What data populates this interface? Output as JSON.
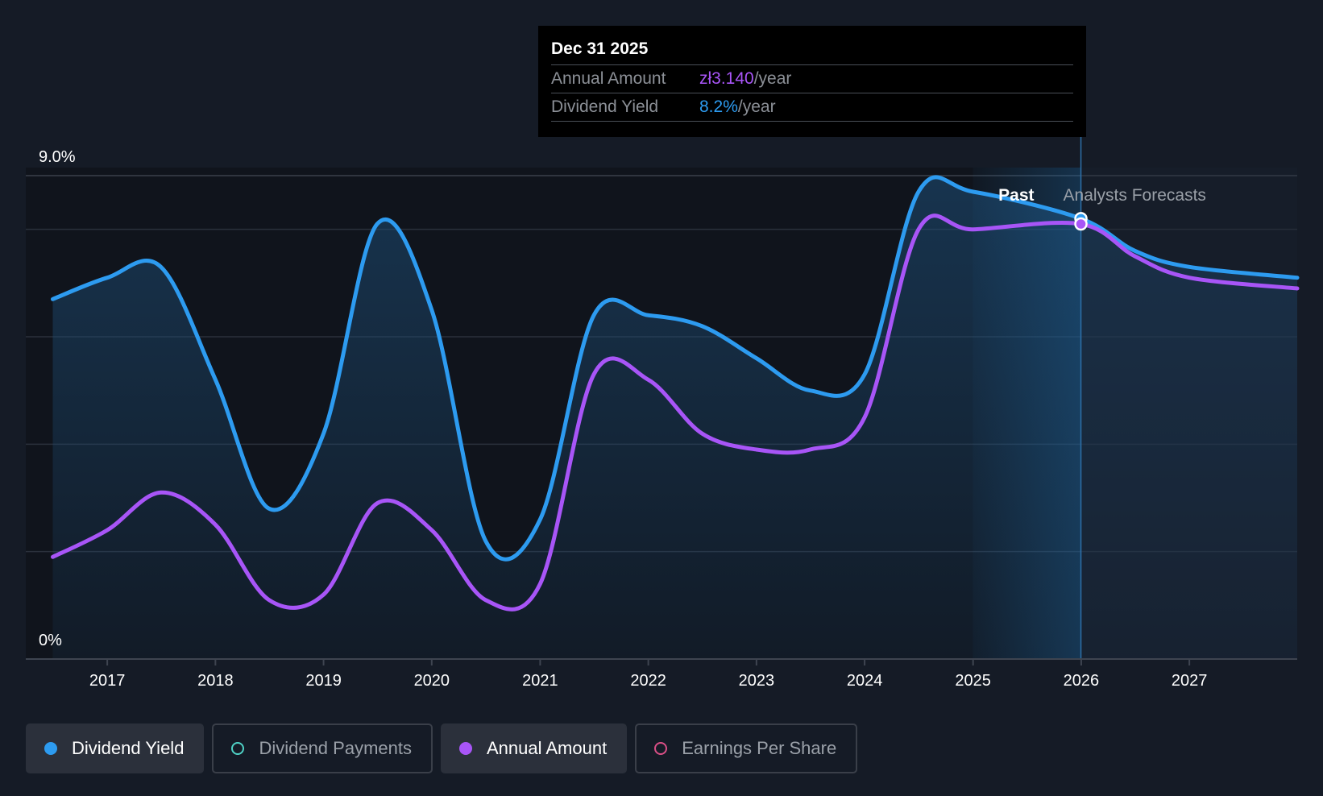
{
  "tooltip": {
    "date": "Dec 31 2025",
    "annual_amount_label": "Annual Amount",
    "annual_amount_value": "zł3.140",
    "dividend_yield_label": "Dividend Yield",
    "dividend_yield_value": "8.2%",
    "per_year": "/year"
  },
  "legend": [
    {
      "label": "Dividend Yield",
      "color": "#2d9bf0",
      "active": true,
      "marker": "filled"
    },
    {
      "label": "Dividend Payments",
      "color": "#4fd1c5",
      "active": false,
      "marker": "hollow"
    },
    {
      "label": "Annual Amount",
      "color": "#a855f7",
      "active": true,
      "marker": "filled"
    },
    {
      "label": "Earnings Per Share",
      "color": "#d94f86",
      "active": false,
      "marker": "hollow"
    }
  ],
  "chart_data": {
    "type": "line",
    "y_tick_labels": [
      "9.0%",
      "0%"
    ],
    "ylim": [
      0,
      9.0
    ],
    "xlim": [
      "2016-04-01",
      "2027-12-31"
    ],
    "x_tick_labels": [
      "2017",
      "2018",
      "2019",
      "2020",
      "2021",
      "2022",
      "2023",
      "2024",
      "2025",
      "2026",
      "2027"
    ],
    "x_tick_dates": [
      "2017-01-01",
      "2018-01-01",
      "2019-01-01",
      "2020-01-01",
      "2021-01-01",
      "2022-01-01",
      "2023-01-01",
      "2024-01-01",
      "2025-01-01",
      "2026-01-01",
      "2027-01-01"
    ],
    "past_label": "Past",
    "forecast_label": "Analysts Forecasts",
    "forecast_start": "2025-12-31",
    "highlight_start": "2024-12-31",
    "grid": true,
    "series": [
      {
        "name": "Dividend Yield",
        "color": "#2d9bf0",
        "area": true,
        "points": [
          [
            "2016-07-01",
            6.7
          ],
          [
            "2017-01-01",
            7.1
          ],
          [
            "2017-07-01",
            7.3
          ],
          [
            "2018-01-01",
            5.2
          ],
          [
            "2018-07-01",
            2.8
          ],
          [
            "2019-01-01",
            4.2
          ],
          [
            "2019-07-01",
            8.1
          ],
          [
            "2020-01-01",
            6.5
          ],
          [
            "2020-07-01",
            2.2
          ],
          [
            "2021-01-01",
            2.6
          ],
          [
            "2021-07-01",
            6.4
          ],
          [
            "2022-01-01",
            6.4
          ],
          [
            "2022-07-01",
            6.2
          ],
          [
            "2023-01-01",
            5.6
          ],
          [
            "2023-07-01",
            5.0
          ],
          [
            "2024-01-01",
            5.3
          ],
          [
            "2024-07-01",
            8.7
          ],
          [
            "2025-01-01",
            8.7
          ],
          [
            "2025-12-31",
            8.2
          ],
          [
            "2026-07-01",
            7.6
          ],
          [
            "2027-01-01",
            7.3
          ],
          [
            "2027-12-31",
            7.1
          ]
        ]
      },
      {
        "name": "Annual Amount",
        "color": "#a855f7",
        "area": false,
        "points": [
          [
            "2016-07-01",
            1.9
          ],
          [
            "2017-01-01",
            2.4
          ],
          [
            "2017-07-01",
            3.1
          ],
          [
            "2018-01-01",
            2.5
          ],
          [
            "2018-07-01",
            1.1
          ],
          [
            "2019-01-01",
            1.2
          ],
          [
            "2019-07-01",
            2.9
          ],
          [
            "2020-01-01",
            2.4
          ],
          [
            "2020-07-01",
            1.1
          ],
          [
            "2021-01-01",
            1.4
          ],
          [
            "2021-07-01",
            5.3
          ],
          [
            "2022-01-01",
            5.2
          ],
          [
            "2022-07-01",
            4.2
          ],
          [
            "2023-01-01",
            3.9
          ],
          [
            "2023-07-01",
            3.9
          ],
          [
            "2024-01-01",
            4.5
          ],
          [
            "2024-07-01",
            8.0
          ],
          [
            "2025-01-01",
            8.0
          ],
          [
            "2025-12-31",
            8.1
          ],
          [
            "2026-07-01",
            7.5
          ],
          [
            "2027-01-01",
            7.1
          ],
          [
            "2027-12-31",
            6.9
          ]
        ]
      }
    ]
  }
}
